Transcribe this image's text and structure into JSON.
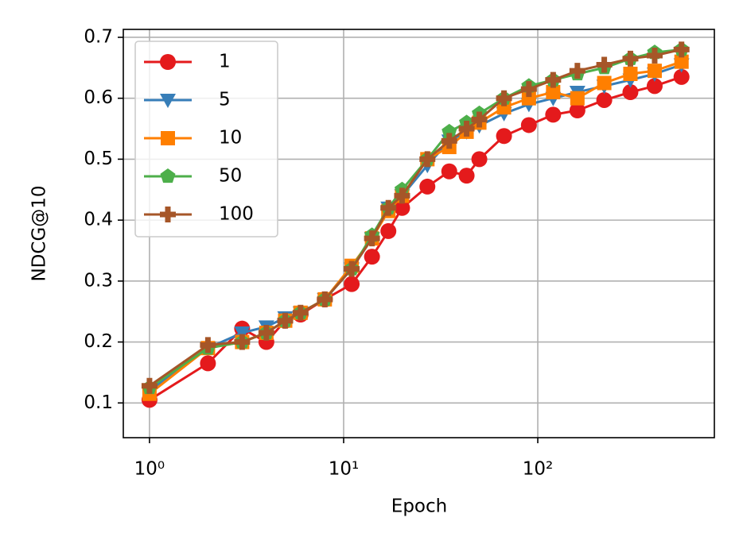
{
  "chart_data": {
    "type": "line",
    "xlabel": "Epoch",
    "ylabel": "NDCG@10",
    "x": [
      1,
      2,
      3,
      4,
      5,
      6,
      8,
      11,
      14,
      17,
      20,
      27,
      35,
      43,
      50,
      67,
      90,
      120,
      160,
      220,
      300,
      400,
      550
    ],
    "series": [
      {
        "name": "1",
        "color": "#e41a1c",
        "marker": "circle",
        "values": [
          0.105,
          0.165,
          0.222,
          0.2,
          0.235,
          0.245,
          0.27,
          0.295,
          0.34,
          0.382,
          0.42,
          0.455,
          0.48,
          0.473,
          0.5,
          0.538,
          0.556,
          0.573,
          0.58,
          0.597,
          0.61,
          0.62,
          0.635
        ]
      },
      {
        "name": "5",
        "color": "#377eb8",
        "marker": "triangle-down",
        "values": [
          0.12,
          0.19,
          0.215,
          0.225,
          0.24,
          0.248,
          0.27,
          0.32,
          0.37,
          0.42,
          0.44,
          0.49,
          0.53,
          0.545,
          0.555,
          0.575,
          0.59,
          0.6,
          0.61,
          0.62,
          0.63,
          0.64,
          0.655
        ]
      },
      {
        "name": "10",
        "color": "#ff7f00",
        "marker": "square",
        "values": [
          0.115,
          0.19,
          0.2,
          0.215,
          0.235,
          0.248,
          0.27,
          0.325,
          0.37,
          0.415,
          0.44,
          0.5,
          0.52,
          0.545,
          0.56,
          0.585,
          0.6,
          0.61,
          0.6,
          0.625,
          0.64,
          0.645,
          0.66
        ]
      },
      {
        "name": "50",
        "color": "#4daf4a",
        "marker": "pentagon",
        "values": [
          0.125,
          0.19,
          0.2,
          0.215,
          0.235,
          0.248,
          0.27,
          0.32,
          0.375,
          0.42,
          0.45,
          0.5,
          0.545,
          0.56,
          0.575,
          0.6,
          0.62,
          0.63,
          0.64,
          0.65,
          0.665,
          0.675,
          0.68
        ]
      },
      {
        "name": "100",
        "color": "#a65628",
        "marker": "plus",
        "values": [
          0.128,
          0.195,
          0.2,
          0.215,
          0.235,
          0.248,
          0.27,
          0.32,
          0.37,
          0.42,
          0.44,
          0.5,
          0.53,
          0.55,
          0.565,
          0.6,
          0.615,
          0.63,
          0.645,
          0.655,
          0.665,
          0.67,
          0.68
        ]
      }
    ],
    "xscale": "log",
    "xlim": [
      0.733,
      812
    ],
    "xticks": [
      {
        "value": 1,
        "label": "10⁰"
      },
      {
        "value": 10,
        "label": "10¹"
      },
      {
        "value": 100,
        "label": "10²"
      }
    ],
    "ylim": [
      0.043,
      0.713
    ],
    "yticks": [
      0.1,
      0.2,
      0.3,
      0.4,
      0.5,
      0.6,
      0.7
    ],
    "grid": true,
    "legend": "upper left"
  }
}
